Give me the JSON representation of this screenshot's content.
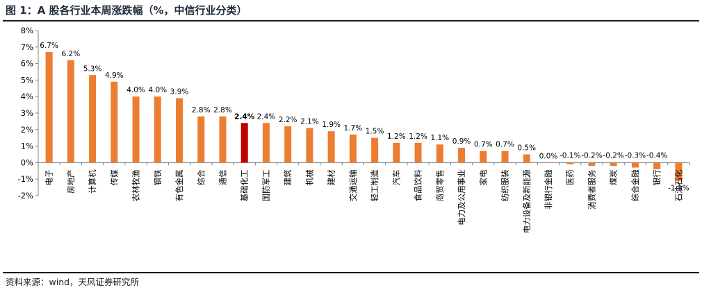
{
  "header": {
    "title": "图 1：A 股各行业本周涨跌幅（%，中信行业分类）"
  },
  "footer": {
    "source": "资料来源：wind，天风证券研究所"
  },
  "colors": {
    "bar": "#ED7D31",
    "highlight": "#C00000",
    "axis": "#808080"
  },
  "chart_data": {
    "type": "bar",
    "title": "",
    "xlabel": "",
    "ylabel": "",
    "ylim": [
      -2,
      8
    ],
    "yticks": [
      -2,
      -1,
      0,
      1,
      2,
      3,
      4,
      5,
      6,
      7,
      8
    ],
    "ytick_labels": [
      "-2%",
      "-1%",
      "0%",
      "1%",
      "2%",
      "3%",
      "4%",
      "5%",
      "6%",
      "7%",
      "8%"
    ],
    "grid": false,
    "legend": "none",
    "highlight_category": "基础化工",
    "categories": [
      "电子",
      "房地产",
      "计算机",
      "传媒",
      "农林牧渔",
      "钢铁",
      "有色金属",
      "综合",
      "通信",
      "基础化工",
      "国防军工",
      "建筑",
      "机械",
      "建材",
      "交通运输",
      "轻工制造",
      "汽车",
      "食品饮料",
      "商贸零售",
      "电力及公用事业",
      "家电",
      "纺织服装",
      "电力设备及新能源",
      "非银行金融",
      "医药",
      "消费者服务",
      "煤炭",
      "综合金融",
      "银行",
      "石油石化"
    ],
    "values": [
      6.7,
      6.2,
      5.3,
      4.9,
      4.0,
      4.0,
      3.9,
      2.8,
      2.8,
      2.4,
      2.4,
      2.2,
      2.1,
      1.9,
      1.7,
      1.5,
      1.2,
      1.2,
      1.1,
      0.9,
      0.7,
      0.7,
      0.5,
      0.0,
      -0.1,
      -0.2,
      -0.2,
      -0.3,
      -0.4,
      -1.1
    ],
    "value_labels": [
      "6.7%",
      "6.2%",
      "5.3%",
      "4.9%",
      "4.0%",
      "4.0%",
      "3.9%",
      "2.8%",
      "2.8%",
      "2.4%",
      "2.4%",
      "2.2%",
      "2.1%",
      "1.9%",
      "1.7%",
      "1.5%",
      "1.2%",
      "1.2%",
      "1.1%",
      "0.9%",
      "0.7%",
      "0.7%",
      "0.5%",
      "0.0%",
      "-0.1%",
      "-0.2%",
      "-0.2%",
      "-0.3%",
      "-0.4%",
      "-1.1%"
    ]
  }
}
